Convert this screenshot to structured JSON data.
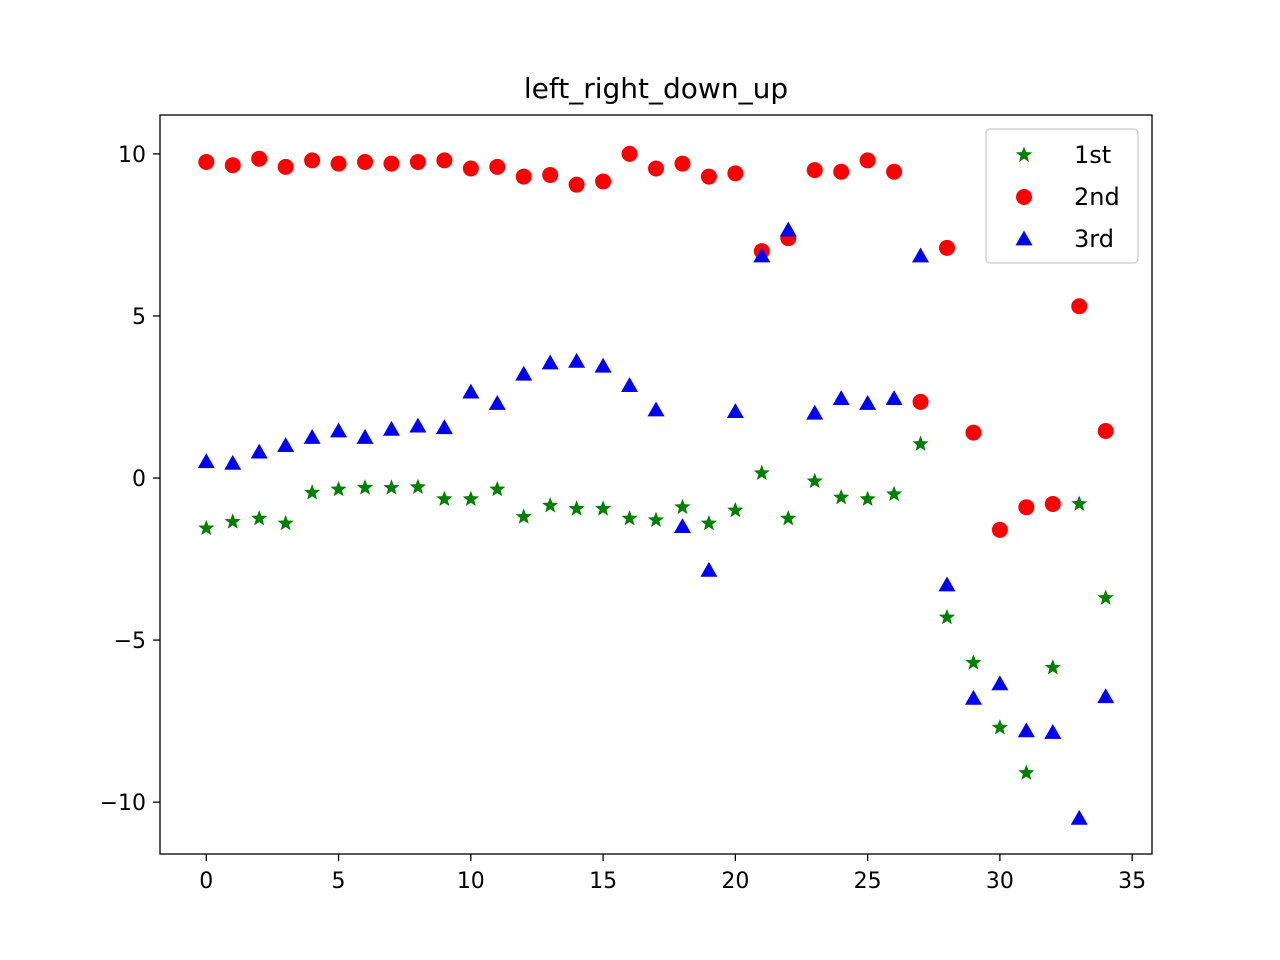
{
  "chart_data": {
    "type": "scatter",
    "title": "left_right_down_up",
    "xlabel": "",
    "ylabel": "",
    "xlim": [
      -1.75,
      35.75
    ],
    "ylim": [
      -11.6,
      11.2
    ],
    "xticks": [
      0,
      5,
      10,
      15,
      20,
      25,
      30,
      35
    ],
    "yticks": [
      -10,
      -5,
      0,
      5,
      10
    ],
    "ytick_labels": [
      "−10",
      "−5",
      "0",
      "5",
      "10"
    ],
    "grid": false,
    "legend_position": "top-right",
    "x": [
      0,
      1,
      2,
      3,
      4,
      5,
      6,
      7,
      8,
      9,
      10,
      11,
      12,
      13,
      14,
      15,
      16,
      17,
      18,
      19,
      20,
      21,
      22,
      23,
      24,
      25,
      26,
      27,
      28,
      29,
      30,
      31,
      32,
      33,
      34
    ],
    "series": [
      {
        "name": "1st",
        "color": "#008000",
        "marker": "star",
        "values": [
          -1.55,
          -1.35,
          -1.25,
          -1.4,
          -0.45,
          -0.35,
          -0.3,
          -0.3,
          -0.28,
          -0.65,
          -0.65,
          -0.35,
          -1.2,
          -0.85,
          -0.95,
          -0.95,
          -1.25,
          -1.3,
          -0.9,
          -1.4,
          -1.0,
          0.15,
          -1.25,
          -0.1,
          -0.6,
          -0.65,
          -0.5,
          1.05,
          -4.3,
          -5.7,
          -7.7,
          -9.1,
          -5.85,
          -0.8,
          -3.7
        ]
      },
      {
        "name": "2nd",
        "color": "#ff0000",
        "marker": "circle",
        "values": [
          9.75,
          9.65,
          9.85,
          9.6,
          9.8,
          9.7,
          9.75,
          9.7,
          9.75,
          9.8,
          9.55,
          9.6,
          9.3,
          9.35,
          9.05,
          9.15,
          10.0,
          9.55,
          9.7,
          9.3,
          9.4,
          7.0,
          7.4,
          9.5,
          9.45,
          9.8,
          9.45,
          2.35,
          7.1,
          1.4,
          -1.6,
          -0.9,
          -0.8,
          5.3,
          1.45
        ]
      },
      {
        "name": "3rd",
        "color": "#0000ff",
        "marker": "triangle",
        "values": [
          0.5,
          0.45,
          0.8,
          1.0,
          1.25,
          1.45,
          1.25,
          1.5,
          1.6,
          1.55,
          2.65,
          2.3,
          3.2,
          3.55,
          3.6,
          3.45,
          2.85,
          2.1,
          -1.5,
          -2.85,
          2.05,
          6.85,
          7.65,
          2.0,
          2.45,
          2.3,
          2.45,
          6.85,
          -3.3,
          -6.8,
          -6.35,
          -7.8,
          -7.85,
          -10.5,
          -6.75
        ]
      }
    ]
  }
}
